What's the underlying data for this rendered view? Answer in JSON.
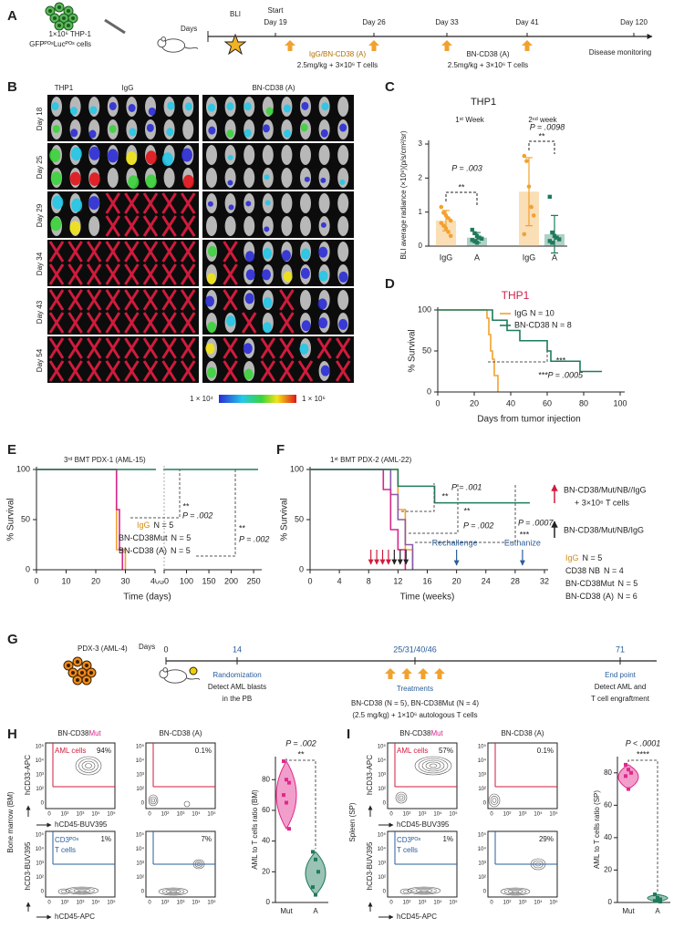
{
  "figure": {
    "panel_labels": [
      "A",
      "B",
      "C",
      "D",
      "E",
      "F",
      "G",
      "H",
      "I"
    ],
    "a": {
      "cells_line1": "1×10⁶ THP-1",
      "cells_line2": "GFPᴾᴼˢLucᴾᴼˢ cells",
      "days": "Days",
      "bli": "BLI",
      "start": "Start",
      "timepoints": [
        "Day 19",
        "Day 26",
        "Day 33",
        "Day 41",
        "Day 120"
      ],
      "treat1": "IgG/BN-CD38 (A)",
      "dose1": "2.5mg/kg + 3×10⁶ T cells",
      "treat2": "BN-CD38 (A)",
      "dose2": "2.5mg/kg + 3×10⁶ T cells",
      "monitoring": "Disease monitoring"
    },
    "b": {
      "cell_line": "THP1",
      "group1": "IgG",
      "group2": "BN-CD38 (A)",
      "days": [
        "Day 18",
        "Day 25",
        "Day 29",
        "Day 34",
        "Day 43",
        "Day 54"
      ],
      "scale_min": "1 × 10⁴",
      "scale_max": "1 × 10⁶"
    },
    "g": {
      "model": "PDX-3 (AML-4)",
      "days": "Days",
      "timepoints": [
        "0",
        "14",
        "25/31/40/46",
        "71"
      ],
      "randomization": "Randomization",
      "rand_line1": "Detect AML blasts",
      "rand_line2": "in the PB",
      "treatments": "Treatments",
      "treat_line1": "BN-CD38 (N = 5), BN-CD38Mut (N = 4)",
      "treat_line2": "(2.5 mg/kg) + 1×10⁶ autologous T cells",
      "endpoint": "End point",
      "end_line1": "Detect AML and",
      "end_line2": "T cell engraftment"
    },
    "flow_axis": {
      "yticks": [
        "10⁵",
        "10⁴",
        "10³",
        "10²",
        "0"
      ],
      "xticks": [
        "0",
        "10²",
        "10³",
        "10⁴",
        "10⁵"
      ]
    },
    "h": {
      "title_mut_base": "BN-CD38",
      "title_mut_suffix": "Mut",
      "title_a": "BN-CD38 (A)",
      "tissue": "Bone marrow (BM)",
      "top_y": "hCD33-APC",
      "top_x": "hCD45-BUV395",
      "bottom_y": "hCD3-BUV395",
      "bottom_x": "hCD45-APC",
      "aml_gate": "AML cells",
      "tcell_gate_1": "CD3ᴾᴼˢ",
      "tcell_gate_2": "T cells",
      "pct": [
        "94%",
        "0.1%",
        "1%",
        "7%"
      ]
    },
    "i": {
      "title_mut_base": "BN-CD38",
      "title_mut_suffix": "Mut",
      "title_a": "BN-CD38 (A)",
      "tissue": "Spleen (SP)",
      "top_y": "hCD33-APC",
      "top_x": "hCD45-BUV395",
      "bottom_y": "hCD3-BUV395",
      "bottom_x": "hCD45-APC",
      "aml_gate": "AML cells",
      "tcell_gate_1": "CD3ᴾᴼˢ",
      "tcell_gate_2": "T cells",
      "pct": [
        "57%",
        "0.1%",
        "1%",
        "29%"
      ]
    }
  },
  "chart_data": [
    {
      "type": "bar",
      "title": "THP1",
      "groups": [
        "1ˢᵗ Week",
        "2ⁿᵈ week"
      ],
      "categories": [
        "IgG",
        "A",
        "IgG",
        "A"
      ],
      "values": [
        0.75,
        0.25,
        1.6,
        0.35
      ],
      "errors": [
        0.3,
        0.15,
        1.0,
        0.55
      ],
      "points": [
        [
          1.15,
          0.98,
          0.9,
          0.82,
          0.75,
          0.68,
          0.6,
          0.52,
          0.42,
          0.3
        ],
        [
          0.48,
          0.38,
          0.3,
          0.25,
          0.22,
          0.18,
          0.15,
          0.1
        ],
        [
          2.65,
          2.5,
          1.75,
          1.15,
          0.9,
          0.35
        ],
        [
          1.45,
          0.4,
          0.3,
          0.25,
          0.2,
          0.15,
          0.1
        ]
      ],
      "colors": [
        "#f2a12e",
        "#1e7b5c",
        "#f2a12e",
        "#1e7b5c"
      ],
      "y_label": "BLI average radiance (×10⁸)(p/s/cm²/sr)",
      "ylim": [
        0,
        3
      ],
      "yticks": [
        0,
        1,
        2,
        3
      ],
      "p_values": [
        "P = .003",
        "P = .0098"
      ],
      "significance": [
        "**",
        "**"
      ]
    },
    {
      "type": "survival",
      "title": "THP1",
      "x_label": "Days from tumor injection",
      "y_label": "% Survival",
      "series": [
        {
          "name": "IgG N = 10",
          "color": "#f2a12e",
          "x": [
            0,
            27,
            28,
            29,
            30,
            31,
            33
          ],
          "values": [
            100,
            90,
            70,
            50,
            40,
            20,
            0
          ]
        },
        {
          "name": "BN-CD38 N = 8",
          "color": "#1e7b5c",
          "x": [
            0,
            30,
            38,
            45,
            60,
            62,
            78,
            90
          ],
          "values": [
            100,
            87.5,
            75,
            62.5,
            50,
            37.5,
            25,
            25
          ]
        }
      ],
      "xlim": [
        0,
        100
      ],
      "xticks": [
        0,
        20,
        40,
        60,
        80,
        100
      ],
      "ylim": [
        0,
        100
      ],
      "yticks": [
        0,
        50,
        100
      ],
      "annotations": [
        "***",
        "***P = .0005"
      ]
    },
    {
      "type": "survival",
      "subtitle": "3ʳᵈ BMT PDX-1 (AML-15)",
      "x_label": "Time (days)",
      "y_label": "% Survival",
      "series": [
        {
          "name": "IgG",
          "n": "N = 5",
          "color": "#f2a12e",
          "x": [
            0,
            27,
            30
          ],
          "values": [
            100,
            20,
            0
          ]
        },
        {
          "name": "BN-CD38Mut",
          "n": "N = 5",
          "color": "#d6268b",
          "x": [
            0,
            27,
            28,
            29
          ],
          "values": [
            100,
            60,
            20,
            0
          ]
        },
        {
          "name": "BN-CD38 (A)",
          "n": "N = 5",
          "color": "#1e7b5c",
          "x": [
            0,
            260
          ],
          "values": [
            100,
            100
          ]
        }
      ],
      "xlim": [
        0,
        260
      ],
      "x_break": [
        40,
        50
      ],
      "xticks": [
        0,
        10,
        20,
        30,
        40,
        50,
        100,
        150,
        200,
        250
      ],
      "ylim": [
        0,
        100
      ],
      "yticks": [
        0,
        50,
        100
      ],
      "annotations": [
        "**",
        "P = .002",
        "**",
        "P = .002"
      ]
    },
    {
      "type": "survival",
      "subtitle": "1ˢᵗ BMT PDX-2 (AML-22)",
      "x_label": "Time (weeks)",
      "y_label": "% Survival",
      "series": [
        {
          "name": "IgG",
          "n": "N = 5",
          "color": "#f2a12e",
          "x": [
            0,
            12,
            13,
            14
          ],
          "values": [
            100,
            60,
            20,
            0
          ]
        },
        {
          "name": "CD38 NB",
          "n": "N = 4",
          "color": "#8a5aa8",
          "x": [
            0,
            11,
            12,
            13,
            14
          ],
          "values": [
            100,
            75,
            50,
            25,
            0
          ]
        },
        {
          "name": "BN-CD38Mut",
          "n": "N = 5",
          "color": "#d6268b",
          "x": [
            0,
            10,
            11,
            12,
            13
          ],
          "values": [
            100,
            80,
            40,
            20,
            0
          ]
        },
        {
          "name": "BN-CD38 (A)",
          "n": "N = 6",
          "color": "#1e7b5c",
          "x": [
            0,
            12,
            17,
            30
          ],
          "values": [
            100,
            83.3,
            66.7,
            66.7
          ]
        }
      ],
      "xlim": [
        0,
        32
      ],
      "xticks": [
        0,
        4,
        8,
        12,
        16,
        20,
        24,
        28,
        32
      ],
      "ylim": [
        0,
        100
      ],
      "yticks": [
        0,
        50,
        100
      ],
      "injection_red": [
        "BN-CD38/Mut/NB//IgG",
        "+ 3×10⁶ T cells"
      ],
      "injection_black": "BN-CD38/Mut/NB/IgG",
      "injection_weeks_red": [
        8.3,
        9.1,
        9.9,
        10.7
      ],
      "injection_weeks_black": [
        11.5,
        12.3,
        13.1
      ],
      "events": [
        "Rechallenge",
        "Euthanize"
      ],
      "event_weeks": [
        20,
        29
      ],
      "annotations": [
        "**",
        "P = .001",
        "**",
        "P = .002",
        "P = .0007",
        "***"
      ]
    },
    {
      "type": "violin",
      "categories": [
        "Mut",
        "A"
      ],
      "points": [
        [
          92,
          80,
          78,
          70,
          65,
          48
        ],
        [
          33,
          28,
          20,
          10,
          5
        ]
      ],
      "colors": [
        "#e0288c",
        "#1e7b5c"
      ],
      "y_label": "AML to T cells ratio (BM)",
      "ylim": [
        0,
        95
      ],
      "yticks": [
        0,
        20,
        40,
        60,
        80
      ],
      "p_value": "P = .002",
      "significance": "**"
    },
    {
      "type": "violin",
      "categories": [
        "Mut",
        "A"
      ],
      "points": [
        [
          85,
          82,
          80,
          78,
          70
        ],
        [
          5,
          3,
          2,
          1,
          1,
          0.5
        ]
      ],
      "colors": [
        "#e0288c",
        "#1e7b5c"
      ],
      "y_label": "AML to T cells ratio (SP)",
      "ylim": [
        0,
        90
      ],
      "yticks": [
        0,
        20,
        40,
        60,
        80
      ],
      "p_value": "P < .0001",
      "significance": "****"
    }
  ]
}
